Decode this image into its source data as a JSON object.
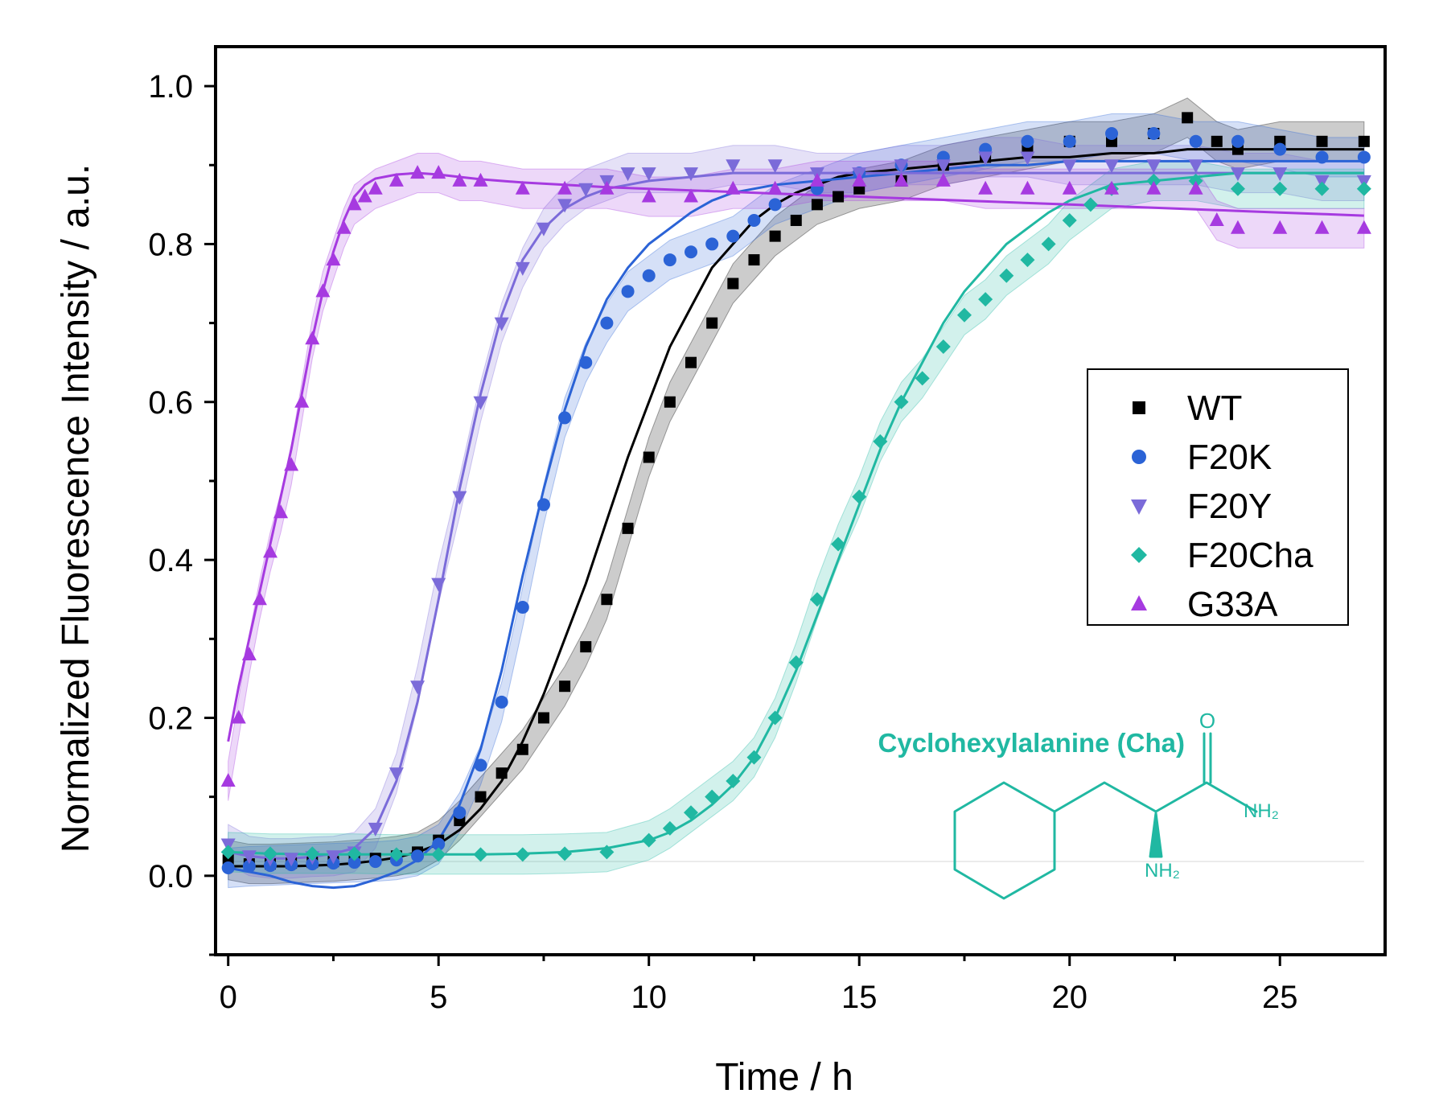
{
  "chart_data": {
    "type": "line",
    "title": "",
    "xlabel": "Time / h",
    "ylabel": "Normalized Fluorescence Intensity / a.u.",
    "xlim": [
      -0.3,
      27.5
    ],
    "ylim": [
      -0.1,
      1.05
    ],
    "xticks": [
      0,
      5,
      10,
      15,
      20,
      25
    ],
    "yticks": [
      0.0,
      0.2,
      0.4,
      0.6,
      0.8,
      1.0
    ],
    "xtick_labels": [
      "0",
      "5",
      "10",
      "15",
      "20",
      "25"
    ],
    "ytick_labels": [
      "0.0",
      "0.2",
      "0.4",
      "0.6",
      "0.8",
      "1.0"
    ],
    "legend_position": "right",
    "series": [
      {
        "name": "WT",
        "color": "#000000",
        "marker": "square",
        "x": [
          0,
          0.5,
          1,
          1.5,
          2,
          2.5,
          3,
          3.5,
          4,
          4.5,
          5,
          5.5,
          6,
          6.5,
          7,
          7.5,
          8,
          8.5,
          9,
          9.5,
          10,
          10.5,
          11,
          11.5,
          12,
          12.5,
          13,
          13.5,
          14,
          14.5,
          15,
          16,
          17,
          18,
          19,
          20,
          21,
          22,
          22.8,
          23.5,
          24,
          25,
          26,
          27
        ],
        "y": [
          0.02,
          0.015,
          0.015,
          0.016,
          0.017,
          0.018,
          0.02,
          0.022,
          0.025,
          0.03,
          0.045,
          0.07,
          0.1,
          0.13,
          0.16,
          0.2,
          0.24,
          0.29,
          0.35,
          0.44,
          0.53,
          0.6,
          0.65,
          0.7,
          0.75,
          0.78,
          0.81,
          0.83,
          0.85,
          0.86,
          0.87,
          0.88,
          0.9,
          0.91,
          0.92,
          0.93,
          0.93,
          0.94,
          0.96,
          0.93,
          0.92,
          0.93,
          0.93,
          0.93
        ],
        "fit_y": [
          0.012,
          0.012,
          0.012,
          0.012,
          0.013,
          0.014,
          0.016,
          0.019,
          0.023,
          0.03,
          0.04,
          0.058,
          0.085,
          0.12,
          0.17,
          0.23,
          0.3,
          0.37,
          0.45,
          0.53,
          0.6,
          0.67,
          0.72,
          0.77,
          0.8,
          0.83,
          0.85,
          0.865,
          0.875,
          0.885,
          0.89,
          0.895,
          0.9,
          0.905,
          0.91,
          0.91,
          0.915,
          0.915,
          0.92,
          0.92,
          0.92,
          0.92,
          0.92,
          0.92
        ]
      },
      {
        "name": "F20K",
        "color": "#2b63d6",
        "marker": "circle",
        "x": [
          0,
          0.5,
          1,
          1.5,
          2,
          2.5,
          3,
          3.5,
          4,
          4.5,
          5,
          5.5,
          6,
          6.5,
          7,
          7.5,
          8,
          8.5,
          9,
          9.5,
          10,
          10.5,
          11,
          11.5,
          12,
          12.5,
          13,
          14,
          15,
          16,
          17,
          18,
          19,
          20,
          21,
          22,
          23,
          24,
          25,
          26,
          27
        ],
        "y": [
          0.01,
          0.012,
          0.013,
          0.014,
          0.015,
          0.016,
          0.017,
          0.018,
          0.02,
          0.025,
          0.04,
          0.08,
          0.14,
          0.22,
          0.34,
          0.47,
          0.58,
          0.65,
          0.7,
          0.74,
          0.76,
          0.78,
          0.79,
          0.8,
          0.81,
          0.83,
          0.85,
          0.87,
          0.89,
          0.9,
          0.91,
          0.92,
          0.93,
          0.93,
          0.94,
          0.94,
          0.93,
          0.93,
          0.92,
          0.91,
          0.91
        ],
        "fit_y": [
          0.01,
          0.005,
          0.0,
          -0.008,
          -0.013,
          -0.015,
          -0.013,
          -0.005,
          0.005,
          0.02,
          0.045,
          0.09,
          0.16,
          0.26,
          0.38,
          0.49,
          0.59,
          0.67,
          0.73,
          0.77,
          0.8,
          0.82,
          0.84,
          0.855,
          0.865,
          0.87,
          0.875,
          0.88,
          0.885,
          0.89,
          0.895,
          0.9,
          0.9,
          0.905,
          0.905,
          0.905,
          0.905,
          0.905,
          0.905,
          0.905,
          0.905
        ]
      },
      {
        "name": "F20Y",
        "color": "#7b6bd9",
        "marker": "triangle-down",
        "x": [
          0,
          0.5,
          1,
          1.5,
          2,
          2.5,
          3,
          3.5,
          4,
          4.5,
          5,
          5.5,
          6,
          6.5,
          7,
          7.5,
          8,
          8.5,
          9,
          9.5,
          10,
          11,
          12,
          13,
          14,
          15,
          16,
          17,
          18,
          19,
          20,
          21,
          22,
          23,
          24,
          25,
          26,
          27
        ],
        "y": [
          0.04,
          0.025,
          0.022,
          0.022,
          0.024,
          0.025,
          0.03,
          0.06,
          0.13,
          0.24,
          0.37,
          0.48,
          0.6,
          0.7,
          0.77,
          0.82,
          0.85,
          0.87,
          0.88,
          0.89,
          0.89,
          0.89,
          0.9,
          0.9,
          0.89,
          0.89,
          0.9,
          0.9,
          0.91,
          0.91,
          0.9,
          0.9,
          0.9,
          0.9,
          0.89,
          0.89,
          0.88,
          0.88
        ],
        "fit_y": [
          0.03,
          0.025,
          0.022,
          0.022,
          0.024,
          0.028,
          0.035,
          0.06,
          0.12,
          0.22,
          0.35,
          0.49,
          0.61,
          0.71,
          0.78,
          0.82,
          0.845,
          0.86,
          0.87,
          0.875,
          0.88,
          0.885,
          0.89,
          0.89,
          0.89,
          0.89,
          0.89,
          0.89,
          0.89,
          0.89,
          0.89,
          0.89,
          0.89,
          0.89,
          0.89,
          0.89,
          0.89,
          0.89
        ]
      },
      {
        "name": "F20Cha",
        "color": "#20b8a2",
        "marker": "diamond",
        "x": [
          0,
          1,
          2,
          3,
          4,
          5,
          6,
          7,
          8,
          9,
          10,
          10.5,
          11,
          11.5,
          12,
          12.5,
          13,
          13.5,
          14,
          14.5,
          15,
          15.5,
          16,
          16.5,
          17,
          17.5,
          18,
          18.5,
          19,
          19.5,
          20,
          20.5,
          21,
          22,
          23,
          24,
          25,
          26,
          27
        ],
        "y": [
          0.03,
          0.028,
          0.028,
          0.028,
          0.027,
          0.027,
          0.027,
          0.027,
          0.028,
          0.03,
          0.045,
          0.06,
          0.08,
          0.1,
          0.12,
          0.15,
          0.2,
          0.27,
          0.35,
          0.42,
          0.48,
          0.55,
          0.6,
          0.63,
          0.67,
          0.71,
          0.73,
          0.76,
          0.78,
          0.8,
          0.83,
          0.85,
          0.87,
          0.88,
          0.88,
          0.87,
          0.87,
          0.87,
          0.87
        ],
        "fit_y": [
          0.03,
          0.028,
          0.027,
          0.027,
          0.027,
          0.027,
          0.027,
          0.028,
          0.03,
          0.035,
          0.045,
          0.055,
          0.07,
          0.09,
          0.115,
          0.15,
          0.2,
          0.26,
          0.33,
          0.4,
          0.47,
          0.54,
          0.6,
          0.65,
          0.7,
          0.74,
          0.77,
          0.8,
          0.82,
          0.84,
          0.855,
          0.865,
          0.875,
          0.88,
          0.885,
          0.89,
          0.89,
          0.89,
          0.89
        ]
      },
      {
        "name": "G33A",
        "color": "#a63ae0",
        "marker": "triangle-up",
        "x": [
          0,
          0.25,
          0.5,
          0.75,
          1,
          1.25,
          1.5,
          1.75,
          2,
          2.25,
          2.5,
          2.75,
          3,
          3.25,
          3.5,
          4,
          4.5,
          5,
          5.5,
          6,
          7,
          8,
          9,
          10,
          11,
          12,
          13,
          14,
          15,
          16,
          17,
          18,
          19,
          20,
          21,
          22,
          23,
          23.5,
          24,
          25,
          26,
          27
        ],
        "y": [
          0.12,
          0.2,
          0.28,
          0.35,
          0.41,
          0.46,
          0.52,
          0.6,
          0.68,
          0.74,
          0.78,
          0.82,
          0.85,
          0.86,
          0.87,
          0.88,
          0.89,
          0.89,
          0.88,
          0.88,
          0.87,
          0.87,
          0.87,
          0.86,
          0.86,
          0.87,
          0.87,
          0.88,
          0.88,
          0.88,
          0.88,
          0.87,
          0.87,
          0.87,
          0.87,
          0.87,
          0.87,
          0.83,
          0.82,
          0.82,
          0.82,
          0.82
        ],
        "fit_y": [
          0.17,
          0.24,
          0.3,
          0.36,
          0.42,
          0.48,
          0.54,
          0.61,
          0.68,
          0.74,
          0.79,
          0.83,
          0.86,
          0.875,
          0.883,
          0.888,
          0.89,
          0.888,
          0.885,
          0.882,
          0.878,
          0.875,
          0.872,
          0.87,
          0.868,
          0.866,
          0.864,
          0.862,
          0.86,
          0.858,
          0.856,
          0.854,
          0.852,
          0.85,
          0.848,
          0.846,
          0.844,
          0.843,
          0.842,
          0.84,
          0.838,
          0.836
        ]
      }
    ],
    "annotation": {
      "text": "Cyclohexylalanine (Cha)",
      "color": "#20b8a2",
      "structure_labels": [
        "O",
        "NH₂",
        "NH₂"
      ]
    }
  }
}
